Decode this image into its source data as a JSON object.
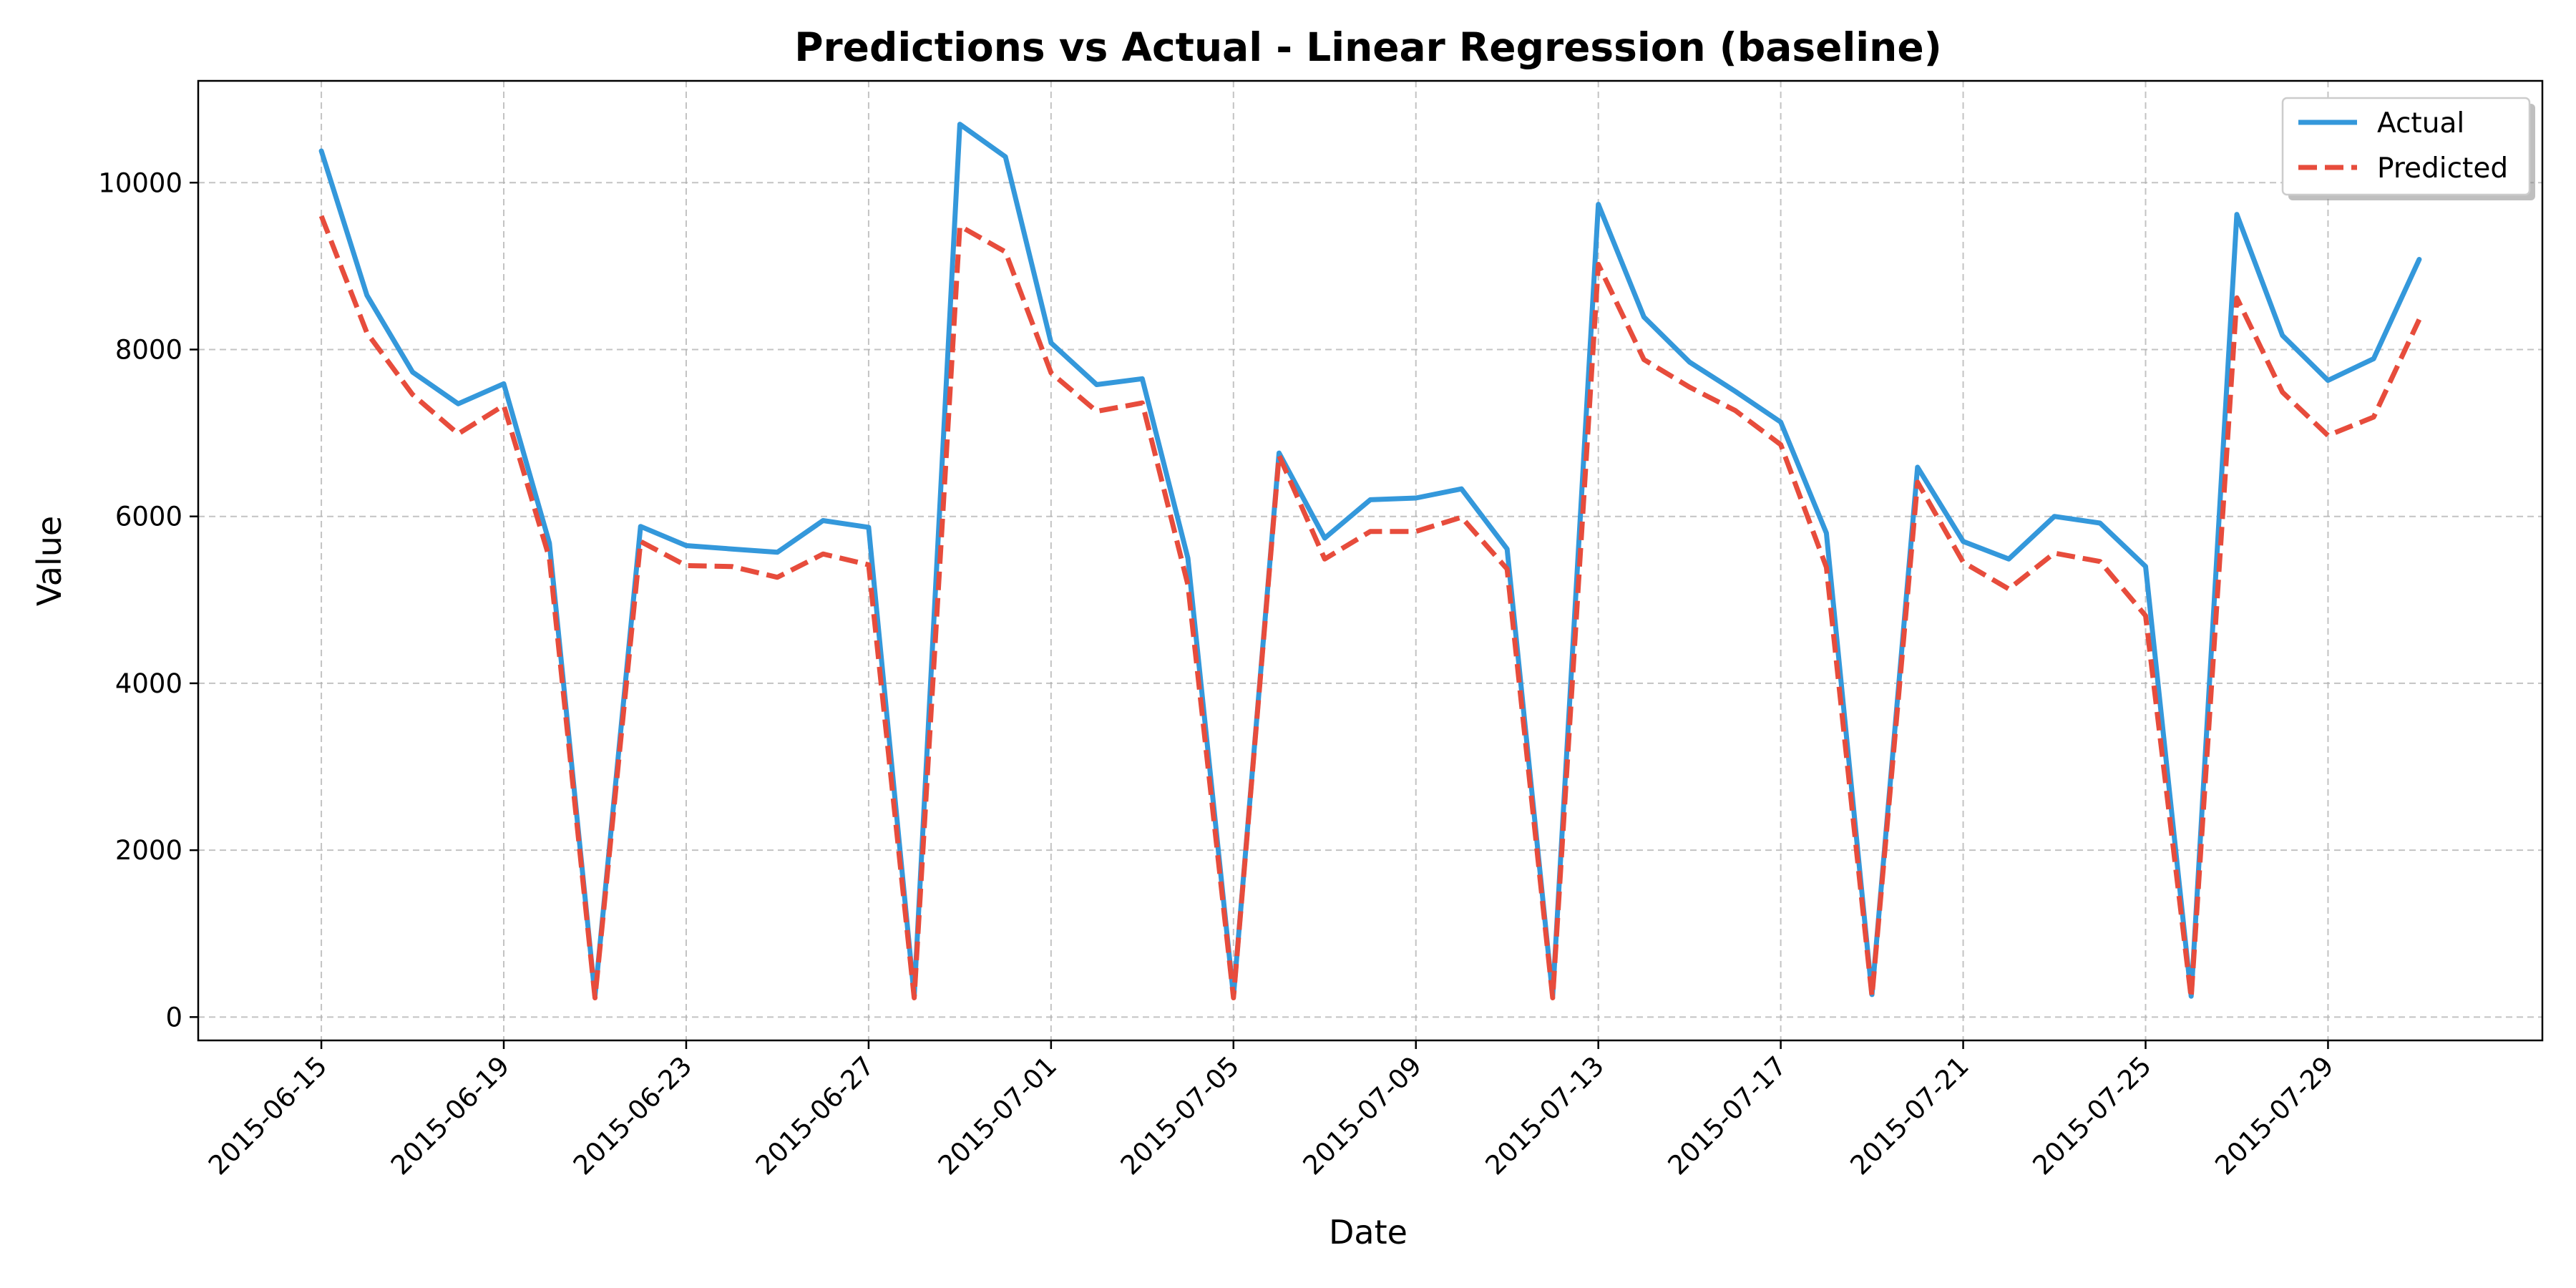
{
  "chart_data": {
    "type": "line",
    "title": "Predictions vs Actual - Linear Regression (baseline)",
    "xlabel": "Date",
    "ylabel": "Value",
    "x": [
      "2015-06-15",
      "2015-06-16",
      "2015-06-17",
      "2015-06-18",
      "2015-06-19",
      "2015-06-20",
      "2015-06-21",
      "2015-06-22",
      "2015-06-23",
      "2015-06-24",
      "2015-06-25",
      "2015-06-26",
      "2015-06-27",
      "2015-06-28",
      "2015-06-29",
      "2015-06-30",
      "2015-07-01",
      "2015-07-02",
      "2015-07-03",
      "2015-07-04",
      "2015-07-05",
      "2015-07-06",
      "2015-07-07",
      "2015-07-08",
      "2015-07-09",
      "2015-07-10",
      "2015-07-11",
      "2015-07-12",
      "2015-07-13",
      "2015-07-14",
      "2015-07-15",
      "2015-07-16",
      "2015-07-17",
      "2015-07-18",
      "2015-07-19",
      "2015-07-20",
      "2015-07-21",
      "2015-07-22",
      "2015-07-23",
      "2015-07-24",
      "2015-07-25",
      "2015-07-26",
      "2015-07-27",
      "2015-07-28",
      "2015-07-29",
      "2015-07-30",
      "2015-07-31"
    ],
    "series": [
      {
        "name": "Actual",
        "color": "#3498db",
        "style": "solid",
        "values": [
          10380,
          8650,
          7730,
          7350,
          7590,
          5680,
          250,
          5880,
          5650,
          5610,
          5570,
          5950,
          5870,
          250,
          10700,
          10310,
          8080,
          7580,
          7650,
          5500,
          250,
          6760,
          5740,
          6200,
          6220,
          6330,
          5610,
          250,
          9740,
          8390,
          7850,
          7500,
          7130,
          5800,
          270,
          6590,
          5700,
          5490,
          6000,
          5920,
          5400,
          250,
          9620,
          8170,
          7630,
          7890,
          9080
        ]
      },
      {
        "name": "Predicted",
        "color": "#e74c3c",
        "style": "dashed",
        "values": [
          9600,
          8200,
          7460,
          6990,
          7330,
          5500,
          230,
          5700,
          5410,
          5400,
          5270,
          5550,
          5420,
          230,
          9480,
          9170,
          7720,
          7260,
          7360,
          5180,
          230,
          6730,
          5490,
          5820,
          5820,
          5990,
          5370,
          230,
          9020,
          7880,
          7550,
          7270,
          6860,
          5390,
          250,
          6410,
          5450,
          5130,
          5560,
          5460,
          4810,
          230,
          8620,
          7490,
          6970,
          7190,
          8360
        ]
      }
    ],
    "ylim": [
      -280,
      11220
    ],
    "yticks": [
      0,
      2000,
      4000,
      6000,
      8000,
      10000
    ],
    "xticks": [
      "2015-06-15",
      "2015-06-19",
      "2015-06-23",
      "2015-06-27",
      "2015-07-01",
      "2015-07-05",
      "2015-07-09",
      "2015-07-13",
      "2015-07-17",
      "2015-07-21",
      "2015-07-25",
      "2015-07-29"
    ],
    "grid": true,
    "legend_position": "top-right"
  }
}
